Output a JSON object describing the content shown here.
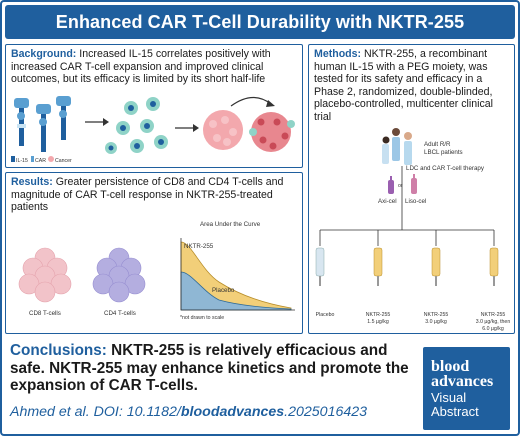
{
  "title": "Enhanced CAR T-Cell Durability with NKTR-255",
  "background": {
    "label": "Background:",
    "text": " Increased IL-15 correlates positively with increased CAR T-cell expansion and improved clinical outcomes, but its efficacy is limited by its short half-life",
    "legend": [
      "IL-15",
      "CAR",
      "Cancer"
    ]
  },
  "methods": {
    "label": "Methods:",
    "text": " NKTR-255, a recombinant human IL-15 with a PEG moiety, was tested for its safety and efficacy in a Phase 2, randomized, double-blinded, placebo-controlled, multicenter clinical trial",
    "patients_label": [
      "Adult R/R",
      "LBCL patients"
    ],
    "therapy_label": "LDC and CAR T-cell therapy",
    "or_label": "or",
    "products": [
      "Axi-cel",
      "Liso-cel"
    ],
    "arms": [
      {
        "l1": "Placebo",
        "l2": ""
      },
      {
        "l1": "NKTR-255",
        "l2": "1.5 µg/kg"
      },
      {
        "l1": "NKTR-255",
        "l2": "3.0 µg/kg"
      },
      {
        "l1": "NKTR-255",
        "l2": "3.0 µg/kg, then",
        "l3": "6.0 µg/kg"
      }
    ]
  },
  "results": {
    "label": "Results:",
    "text": " Greater persistence of CD8 and CD4 T-cells and magnitude of CAR T-cell response in NKTR-255-treated patients",
    "cd8": "CD8 T-cells",
    "cd4": "CD4 T-cells",
    "auc_title": "Area Under the Curve",
    "curve_a": "NKTR-255",
    "curve_b": "Placebo",
    "note": "*not drawn to scale"
  },
  "conclusions": {
    "label": "Conclusions:",
    "text": " NKTR-255 is relatively efficacious and safe. NKTR-255 may enhance kinetics and promote the expansion of CAR T-cells."
  },
  "citation": {
    "prefix": "Ahmed et al. DOI: 10.1182/",
    "emph": "bloodadvances",
    "suffix": ".2025016423"
  },
  "logo": {
    "line1": "blood",
    "line2": "advances",
    "line3": "Visual",
    "line4": "Abstract"
  },
  "colors": {
    "brand": "#1f5f9e",
    "cd8": "#f2c3c9",
    "cd4": "#b4aee0",
    "nktr": "#f2cf79",
    "placebo": "#8fb7d4"
  }
}
